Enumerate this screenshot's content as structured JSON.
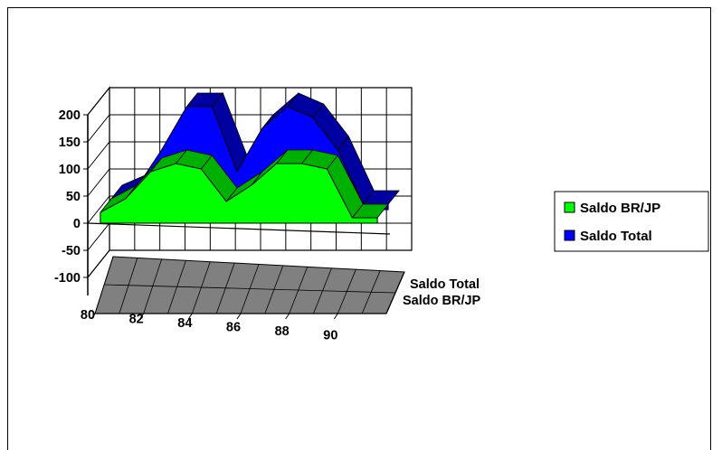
{
  "chart_data": {
    "type": "area",
    "variant": "3d-area",
    "categories": [
      "80",
      "81",
      "82",
      "83",
      "84",
      "85",
      "86",
      "87",
      "88",
      "89",
      "90",
      "91"
    ],
    "x_tick_labels": [
      "80",
      "82",
      "84",
      "86",
      "88",
      "90"
    ],
    "ylim": [
      -100,
      200
    ],
    "y_ticks": [
      200,
      150,
      100,
      50,
      0,
      -50,
      -100
    ],
    "y_tick_labels": [
      "200",
      "150",
      "100",
      "50",
      "0",
      "-50",
      "-100"
    ],
    "depth_labels": [
      "Saldo Total",
      "Saldo BR/JP"
    ],
    "grid": true,
    "legend_position": "right",
    "series": [
      {
        "name": "Saldo BR/JP",
        "color": "#00ff00",
        "values": [
          20,
          45,
          95,
          110,
          100,
          40,
          70,
          110,
          110,
          100,
          10,
          10
        ]
      },
      {
        "name": "Saldo Total",
        "color": "#0000ff",
        "values": [
          20,
          40,
          110,
          190,
          190,
          70,
          150,
          190,
          170,
          110,
          10,
          10
        ]
      }
    ],
    "floor_color": "#808080",
    "title": "",
    "xlabel": "",
    "ylabel": ""
  }
}
